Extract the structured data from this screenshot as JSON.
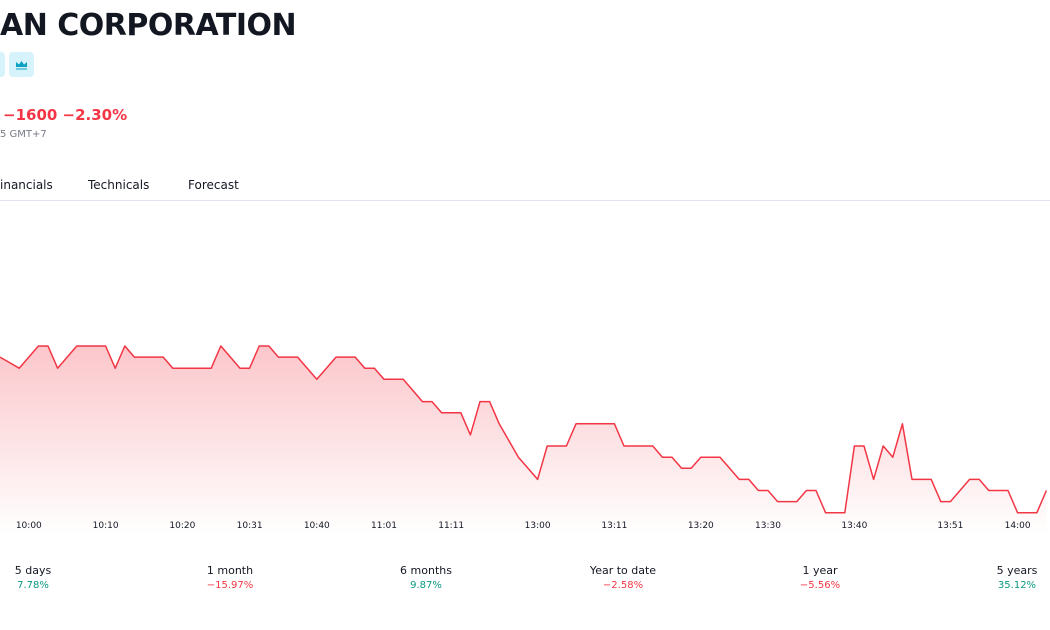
{
  "header": {
    "title": "AN CORPORATION",
    "change": "−1600 −2.30%",
    "time": "5 GMT+7"
  },
  "tabs": [
    "inancials",
    "Technicals",
    "Forecast"
  ],
  "chart_data": {
    "type": "line",
    "color": "#f23645",
    "ylim": [
      67800,
      69800
    ],
    "categories": [
      null,
      null,
      null,
      "10:00",
      null,
      null,
      null,
      null,
      null,
      null,
      null,
      "10:10",
      null,
      null,
      null,
      null,
      null,
      null,
      null,
      "10:20",
      null,
      null,
      null,
      null,
      null,
      null,
      "10:31",
      null,
      null,
      null,
      null,
      null,
      null,
      "10:40",
      null,
      null,
      null,
      null,
      null,
      null,
      "11:01",
      null,
      null,
      null,
      null,
      null,
      null,
      "11:11",
      null,
      null,
      null,
      null,
      null,
      null,
      null,
      null,
      "13:00",
      null,
      null,
      null,
      null,
      null,
      null,
      null,
      "13:11",
      null,
      null,
      null,
      null,
      null,
      null,
      null,
      null,
      "13:20",
      null,
      null,
      null,
      null,
      null,
      null,
      "13:30",
      null,
      null,
      null,
      null,
      null,
      null,
      null,
      null,
      "13:40",
      null,
      null,
      null,
      null,
      null,
      null,
      null,
      null,
      null,
      "13:51",
      null,
      null,
      null,
      null,
      null,
      null,
      "14:00",
      null,
      null,
      null
    ],
    "values": [
      69400,
      69350,
      69300,
      69400,
      69500,
      69500,
      69300,
      69400,
      69500,
      69500,
      69500,
      69500,
      69300,
      69500,
      69400,
      69400,
      69400,
      69400,
      69300,
      69300,
      69300,
      69300,
      69300,
      69500,
      69400,
      69300,
      69300,
      69500,
      69500,
      69400,
      69400,
      69400,
      69300,
      69200,
      69300,
      69400,
      69400,
      69400,
      69300,
      69300,
      69200,
      69200,
      69200,
      69100,
      69000,
      69000,
      68900,
      68900,
      68900,
      68700,
      69000,
      69000,
      68800,
      68650,
      68500,
      68400,
      68300,
      68600,
      68600,
      68600,
      68800,
      68800,
      68800,
      68800,
      68800,
      68600,
      68600,
      68600,
      68600,
      68500,
      68500,
      68400,
      68400,
      68500,
      68500,
      68500,
      68400,
      68300,
      68300,
      68200,
      68200,
      68100,
      68100,
      68100,
      68200,
      68200,
      68000,
      68000,
      68000,
      68600,
      68600,
      68300,
      68600,
      68500,
      68800,
      68300,
      68300,
      68300,
      68100,
      68100,
      68200,
      68300,
      68300,
      68200,
      68200,
      68200,
      68000,
      68000,
      68000,
      68200
    ]
  },
  "performance": [
    {
      "label": "5 days",
      "value": "7.78%"
    },
    {
      "label": "1 month",
      "value": "−15.97%"
    },
    {
      "label": "6 months",
      "value": "9.87%"
    },
    {
      "label": "Year to date",
      "value": "−2.58%"
    },
    {
      "label": "1 year",
      "value": "−5.56%"
    },
    {
      "label": "5 years",
      "value": "35.12%"
    }
  ]
}
